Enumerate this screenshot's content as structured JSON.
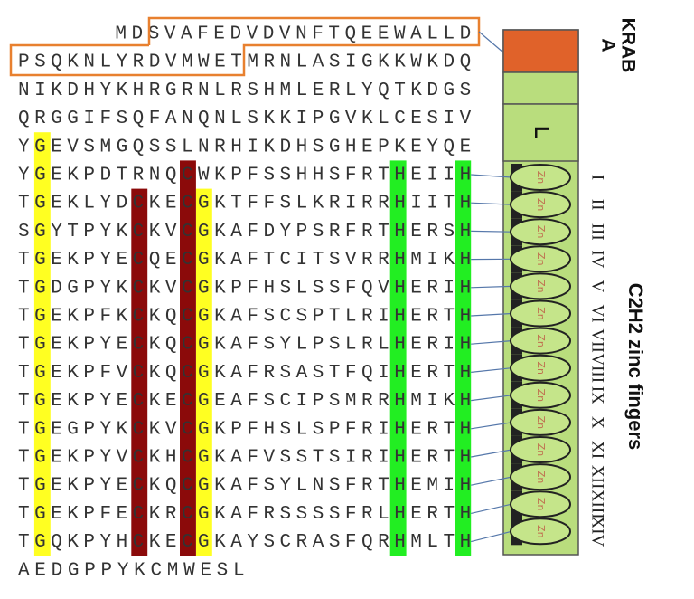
{
  "sequence_lines": [
    "MDSVAFEDVDVNFTQEEWALLD",
    "PSQKNLYRDVMWETMRNLASIGKKWKDQ",
    "NIKDHYKHRGRNLRSHMLERLYQTKDGS",
    "QRGGIFSQFANQNLSKKIPGVKLCESIV",
    "YGEVSMGQSSLNRHIKDHSGHEPKEYQE",
    "YGEKPDTRNQCWKPFSSHHSFRTHEIIH",
    "TGEKLYDCKECGKTFFSLKRIRRHIITH",
    "SGYTPYKCKVCGKAFDYPSRFRTHERSH",
    "TGEKPYECQECGKAFTCITSVRRHMIKH",
    "TGDGPYKCKVCGKPFHSLSSFQVHERIH",
    "TGEKPFKCKQCGKAFSCSPTLRIHERTH",
    "TGEKPYECKQCGKAFSYLPSLRLHERIH",
    "TGEKPFVCKQCGKAFRSASTFQIHERTH",
    "TGEKPYECKECGEAFSCIPSMRRHMIKH",
    "TGEGPYKCKVCGKPFHSLSPFRIHERTH",
    "TGEKPYVCKHCGKAFVSSTSIRIHERTH",
    "TGEKPYECKQCGKAFSYLNSFRTHEMIH",
    "TGEKPFECKRCGKAFRSSSSFRLHERTH",
    "TGQKPYHCKECGKAYSCRASFQRHMLTH",
    "AEDGPPYKCMWESL"
  ],
  "domains": {
    "krab_line1": "KRAB",
    "krab_line2": "A",
    "linker": "L",
    "zinc_fingers": "C2H2 zinc fingers",
    "finger_label": "Zn"
  },
  "finger_numerals": [
    "I",
    "II",
    "III",
    "IV",
    "V",
    "VI",
    "VII",
    "VIII",
    "IX",
    "X",
    "XI",
    "XII",
    "XIII",
    "XIV"
  ]
}
